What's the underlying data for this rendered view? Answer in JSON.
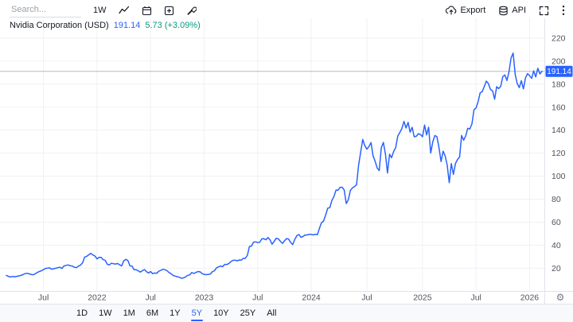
{
  "header": {
    "search_placeholder": "Search...",
    "interval_label": "1W",
    "export_label": "Export",
    "api_label": "API",
    "icons": [
      "line-chart-icon",
      "calendar-icon",
      "compare-plus-icon",
      "tools-wrench-icon",
      "export-upload-icon",
      "api-database-icon",
      "fullscreen-icon",
      "more-menu-icon",
      "settings-gear-icon"
    ]
  },
  "symbol": {
    "name": "Nvidia Corporation (USD)",
    "price": "191.14",
    "change": "5.73 (+3.09%)"
  },
  "colors": {
    "accent": "#2962ff",
    "positive": "#089981",
    "line": "#2962ff",
    "grid": "#eef1f5",
    "axis_text": "#50535e",
    "text": "#131722",
    "border": "#e0e3eb",
    "current_price_line": "#b7bac1",
    "badge_bg": "#2962ff",
    "badge_text": "#ffffff"
  },
  "chart_data": {
    "type": "line",
    "title": "Nvidia Corporation (USD)",
    "interval": "1W",
    "range": "5Y",
    "x_unit": "week",
    "x_start": "2021-02",
    "x_end": "2026-02",
    "last_price": 191.14,
    "last_price_label": "191.14",
    "change": 5.73,
    "change_pct": "+3.09%",
    "grid": true,
    "legend_position": "none",
    "ylim": [
      0,
      233
    ],
    "y_ticks": [
      20,
      40,
      60,
      80,
      100,
      120,
      140,
      160,
      180,
      200,
      220
    ],
    "x_ticks": [
      {
        "label": "Jul",
        "week": 18
      },
      {
        "label": "2022",
        "week": 44
      },
      {
        "label": "Jul",
        "week": 70
      },
      {
        "label": "2023",
        "week": 96
      },
      {
        "label": "Jul",
        "week": 122
      },
      {
        "label": "2024",
        "week": 148
      },
      {
        "label": "Jul",
        "week": 175
      },
      {
        "label": "2025",
        "week": 202
      },
      {
        "label": "Jul",
        "week": 228
      },
      {
        "label": "2026",
        "week": 254
      }
    ],
    "series": [
      {
        "name": "Nvidia Corporation (USD) weekly close",
        "values": [
          13.7,
          12.9,
          12.3,
          12.8,
          12.5,
          12.9,
          13.2,
          13.7,
          14.3,
          15.2,
          15.6,
          15.1,
          14.6,
          14.2,
          15.1,
          16.3,
          17.1,
          17.8,
          18.7,
          19.8,
          20.0,
          20.3,
          19.0,
          19.5,
          19.9,
          20.4,
          20.8,
          19.7,
          22.0,
          22.4,
          22.8,
          22.1,
          21.9,
          20.8,
          20.4,
          21.8,
          22.7,
          24.7,
          29.7,
          30.3,
          31.6,
          32.9,
          31.5,
          30.6,
          28.1,
          29.5,
          29.4,
          27.3,
          26.9,
          23.4,
          22.8,
          24.3,
          23.9,
          23.6,
          24.1,
          22.9,
          22.0,
          26.4,
          27.7,
          26.7,
          22.0,
          21.9,
          18.6,
          18.7,
          17.7,
          16.6,
          17.8,
          18.8,
          17.0,
          15.8,
          17.1,
          15.2,
          15.8,
          15.6,
          17.3,
          18.1,
          19.0,
          18.7,
          17.8,
          16.2,
          15.1,
          13.6,
          13.1,
          12.5,
          12.1,
          11.2,
          11.6,
          12.4,
          13.8,
          14.1,
          16.2,
          15.4,
          16.3,
          17.0,
          16.9,
          15.3,
          14.6,
          14.3,
          14.6,
          14.9,
          16.9,
          17.8,
          20.3,
          21.1,
          21.9,
          21.3,
          23.3,
          23.2,
          24.1,
          25.7,
          26.8,
          27.0,
          26.4,
          27.1,
          27.0,
          28.6,
          28.5,
          31.3,
          38.9,
          39.3,
          42.7,
          42.8,
          42.3,
          42.5,
          45.5,
          45.6,
          44.7,
          46.7,
          44.6,
          40.8,
          43.3,
          46.0,
          45.5,
          43.4,
          41.6,
          43.7,
          45.7,
          45.4,
          42.4,
          40.5,
          45.0,
          48.3,
          49.3,
          46.8,
          47.5,
          48.9,
          48.8,
          49.5,
          49.3,
          49.0,
          49.5,
          49.1,
          54.7,
          59.6,
          61.0,
          66.2,
          72.1,
          72.6,
          78.8,
          82.3,
          87.9,
          87.8,
          90.3,
          90.4,
          88.0,
          76.2,
          79.5,
          87.7,
          89.8,
          90.9,
          92.5,
          109.6,
          120.9,
          131.9,
          126.6,
          123.5,
          125.8,
          129.2,
          117.9,
          113.1,
          107.2,
          104.8,
          124.6,
          129.4,
          119.4,
          102.8,
          119.1,
          116.0,
          121.4,
          124.9,
          134.8,
          138.0,
          141.5,
          147.6,
          141.9,
          146.7,
          138.3,
          142.4,
          134.3,
          134.7,
          137.0,
          136.2,
          134.3,
          144.5,
          135.9,
          142.6,
          120.1,
          129.8,
          135.3,
          134.4,
          124.9,
          112.7,
          121.7,
          117.7,
          109.7,
          94.3,
          110.9,
          101.5,
          111.0,
          114.5,
          116.7,
          135.4,
          131.3,
          135.1,
          141.7,
          141.1,
          145.5,
          157.8,
          159.3,
          164.9,
          172.4,
          173.5,
          177.9,
          182.7,
          180.5,
          175.4,
          174.2,
          167.0,
          177.8,
          176.1,
          178.2,
          186.6,
          188.0,
          183.2,
          190.8,
          202.9,
          207.0,
          188.1,
          180.6,
          177.0,
          183.0,
          175.9,
          185.5,
          189.2,
          187.4,
          185.0,
          191.5,
          186.3,
          193.8,
          188.9,
          191.14
        ]
      }
    ]
  },
  "bottom_toolbar": {
    "ranges": [
      "1D",
      "1W",
      "1M",
      "6M",
      "1Y",
      "5Y",
      "10Y",
      "25Y",
      "All"
    ],
    "active": "5Y"
  }
}
